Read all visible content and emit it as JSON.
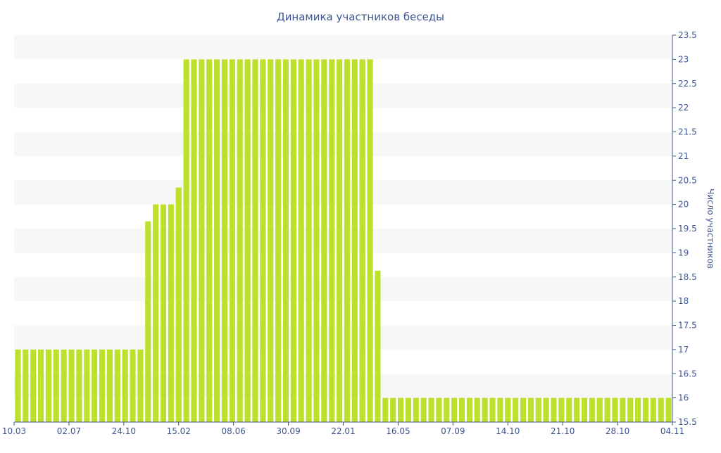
{
  "chart_data": {
    "type": "bar",
    "title": "Динамика участников беседы",
    "ylabel": "Число участников",
    "xlabel": "",
    "ylim": [
      15.5,
      23.5
    ],
    "y_ticks": [
      "15.5",
      "16",
      "16.5",
      "17",
      "17.5",
      "18",
      "18.5",
      "19",
      "19.5",
      "20",
      "20.5",
      "21",
      "21.5",
      "22",
      "22.5",
      "23",
      "23.5"
    ],
    "x_tick_labels": [
      "10.03",
      "02.07",
      "24.10",
      "15.02",
      "08.06",
      "30.09",
      "22.01",
      "16.05",
      "07.09",
      "14.10",
      "21.10",
      "28.10",
      "04.11"
    ],
    "y_axis_position": "right",
    "grid": "horizontal-bands",
    "legend": "none",
    "bar_color": "#bde02c",
    "band_color": "#f7f7f7",
    "text_color": "#3e5691",
    "values": [
      17,
      17,
      17,
      17,
      17,
      17,
      17,
      17,
      17,
      17,
      17,
      17,
      17,
      17,
      17,
      17,
      17,
      19.65,
      20,
      20,
      20,
      20.35,
      23,
      23,
      23,
      23,
      23,
      23,
      23,
      23,
      23,
      23,
      23,
      23,
      23,
      23,
      23,
      23,
      23,
      23,
      23,
      23,
      23,
      23,
      23,
      23,
      23,
      18.63,
      16,
      16,
      16,
      16,
      16,
      16,
      16,
      16,
      16,
      16,
      16,
      16,
      16,
      16,
      16,
      16,
      16,
      16,
      16,
      16,
      16,
      16,
      16,
      16,
      16,
      16,
      16,
      16,
      16,
      16,
      16,
      16,
      16,
      16,
      16,
      16,
      16,
      16
    ]
  }
}
